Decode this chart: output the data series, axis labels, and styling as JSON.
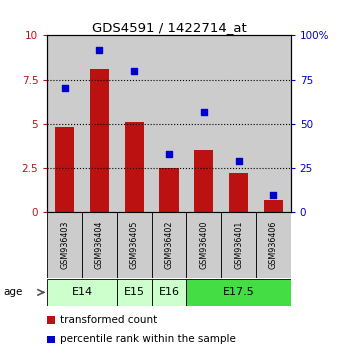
{
  "title": "GDS4591 / 1422714_at",
  "samples": [
    "GSM936403",
    "GSM936404",
    "GSM936405",
    "GSM936402",
    "GSM936400",
    "GSM936401",
    "GSM936406"
  ],
  "transformed_count": [
    4.8,
    8.1,
    5.1,
    2.5,
    3.5,
    2.2,
    0.7
  ],
  "percentile_rank": [
    70,
    92,
    80,
    33,
    57,
    29,
    10
  ],
  "age_groups": [
    {
      "label": "E14",
      "start": 0,
      "end": 2,
      "color": "#ccffcc"
    },
    {
      "label": "E15",
      "start": 2,
      "end": 3,
      "color": "#ccffcc"
    },
    {
      "label": "E16",
      "start": 3,
      "end": 4,
      "color": "#ccffcc"
    },
    {
      "label": "E17.5",
      "start": 4,
      "end": 7,
      "color": "#44dd44"
    }
  ],
  "bar_color": "#bb1111",
  "dot_color": "#0000cc",
  "left_ylim": [
    0,
    10
  ],
  "right_ylim": [
    0,
    100
  ],
  "left_yticks": [
    0,
    2.5,
    5,
    7.5,
    10
  ],
  "right_yticks": [
    0,
    25,
    50,
    75,
    100
  ],
  "left_yticklabels": [
    "0",
    "2.5",
    "5",
    "7.5",
    "10"
  ],
  "right_yticklabels": [
    "0",
    "25",
    "50",
    "75",
    "100%"
  ],
  "hline_values": [
    2.5,
    5.0,
    7.5
  ],
  "legend_bar_label": "transformed count",
  "legend_dot_label": "percentile rank within the sample",
  "bg_color": "#cccccc",
  "sample_box_color": "#cccccc"
}
